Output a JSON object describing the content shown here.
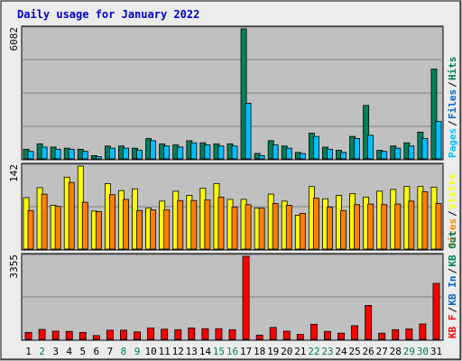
{
  "title": "Daily usage for January 2022",
  "colors": {
    "background": "#ececec",
    "plot_background": "#c0c0c0",
    "title_text": "#0000cc",
    "hits": "#00805c",
    "files": "#0066cc",
    "pages": "#00c0ff",
    "visits": "#ffff00",
    "sites": "#ff8000",
    "kb_in": "#0066cc",
    "kb_out": "#00805c",
    "kb_f": "#ff0000",
    "day_normal": "#000000",
    "day_weekend": "#00805c"
  },
  "chart_data": [
    {
      "type": "bar",
      "panel": "hits-files-pages",
      "ymax_label": "6082",
      "ylim": [
        0,
        6082
      ],
      "legend": [
        {
          "label": "Pages",
          "color": "#00c0ff"
        },
        {
          "label": "Files",
          "color": "#0066cc"
        },
        {
          "label": "Hits",
          "color": "#00805c"
        }
      ],
      "categories": [
        "1",
        "2",
        "3",
        "4",
        "5",
        "6",
        "7",
        "8",
        "9",
        "10",
        "11",
        "12",
        "13",
        "14",
        "15",
        "16",
        "17",
        "18",
        "19",
        "20",
        "21",
        "22",
        "23",
        "24",
        "25",
        "26",
        "27",
        "28",
        "29",
        "30",
        "31"
      ],
      "series": [
        {
          "name": "Hits",
          "values": [
            450,
            700,
            550,
            500,
            450,
            150,
            600,
            600,
            500,
            950,
            700,
            650,
            850,
            750,
            700,
            700,
            6082,
            250,
            850,
            600,
            300,
            1200,
            550,
            400,
            1050,
            2500,
            400,
            600,
            750,
            1250,
            4200
          ]
        },
        {
          "name": "Pages",
          "values": [
            350,
            550,
            450,
            450,
            350,
            100,
            500,
            500,
            400,
            850,
            600,
            550,
            750,
            650,
            600,
            600,
            2600,
            150,
            650,
            500,
            250,
            1050,
            450,
            300,
            950,
            1100,
            350,
            500,
            600,
            950,
            1750
          ]
        }
      ]
    },
    {
      "type": "bar",
      "panel": "visits-sites",
      "ymax_label": "142",
      "ylim": [
        0,
        142
      ],
      "legend": [
        {
          "label": "Sites",
          "color": "#ff8000"
        },
        {
          "label": "Visits",
          "color": "#ffff00"
        }
      ],
      "categories": [
        "1",
        "2",
        "3",
        "4",
        "5",
        "6",
        "7",
        "8",
        "9",
        "10",
        "11",
        "12",
        "13",
        "14",
        "15",
        "16",
        "17",
        "18",
        "19",
        "20",
        "21",
        "22",
        "23",
        "24",
        "25",
        "26",
        "27",
        "28",
        "29",
        "30",
        "31"
      ],
      "series": [
        {
          "name": "Visits",
          "values": [
            88,
            105,
            75,
            123,
            142,
            65,
            112,
            100,
            103,
            70,
            82,
            99,
            92,
            104,
            112,
            85,
            85,
            70,
            94,
            82,
            58,
            107,
            86,
            92,
            95,
            89,
            99,
            102,
            107,
            107,
            106
          ]
        },
        {
          "name": "Sites",
          "values": [
            66,
            94,
            73,
            114,
            80,
            64,
            93,
            85,
            66,
            67,
            67,
            83,
            83,
            84,
            89,
            72,
            76,
            70,
            78,
            75,
            61,
            87,
            72,
            66,
            76,
            77,
            76,
            77,
            82,
            98,
            78
          ]
        }
      ]
    },
    {
      "type": "bar",
      "panel": "kbytes",
      "ymax_label": "3355",
      "ylim": [
        0,
        3355
      ],
      "legend": [
        {
          "label": "KB F",
          "color": "#ff0000"
        },
        {
          "label": "KB In",
          "color": "#0066cc"
        },
        {
          "label": "KB Out",
          "color": "#00805c"
        }
      ],
      "categories": [
        "1",
        "2",
        "3",
        "4",
        "5",
        "6",
        "7",
        "8",
        "9",
        "10",
        "11",
        "12",
        "13",
        "14",
        "15",
        "16",
        "17",
        "18",
        "19",
        "20",
        "21",
        "22",
        "23",
        "24",
        "25",
        "26",
        "27",
        "28",
        "29",
        "30",
        "31"
      ],
      "series": [
        {
          "name": "KB F",
          "values": [
            280,
            400,
            330,
            320,
            280,
            150,
            370,
            370,
            300,
            460,
            410,
            390,
            460,
            430,
            430,
            390,
            3355,
            170,
            480,
            330,
            200,
            610,
            320,
            250,
            550,
            1370,
            250,
            390,
            420,
            620,
            2260
          ]
        }
      ]
    }
  ],
  "days": [
    {
      "label": "1",
      "weekend": false
    },
    {
      "label": "2",
      "weekend": true
    },
    {
      "label": "3",
      "weekend": false
    },
    {
      "label": "4",
      "weekend": false
    },
    {
      "label": "5",
      "weekend": false
    },
    {
      "label": "6",
      "weekend": false
    },
    {
      "label": "7",
      "weekend": false
    },
    {
      "label": "8",
      "weekend": true
    },
    {
      "label": "9",
      "weekend": true
    },
    {
      "label": "10",
      "weekend": false
    },
    {
      "label": "11",
      "weekend": false
    },
    {
      "label": "12",
      "weekend": false
    },
    {
      "label": "13",
      "weekend": false
    },
    {
      "label": "14",
      "weekend": false
    },
    {
      "label": "15",
      "weekend": true
    },
    {
      "label": "16",
      "weekend": true
    },
    {
      "label": "17",
      "weekend": false
    },
    {
      "label": "18",
      "weekend": false
    },
    {
      "label": "19",
      "weekend": false
    },
    {
      "label": "20",
      "weekend": false
    },
    {
      "label": "21",
      "weekend": false
    },
    {
      "label": "22",
      "weekend": true
    },
    {
      "label": "23",
      "weekend": true
    },
    {
      "label": "24",
      "weekend": false
    },
    {
      "label": "25",
      "weekend": false
    },
    {
      "label": "26",
      "weekend": false
    },
    {
      "label": "27",
      "weekend": false
    },
    {
      "label": "28",
      "weekend": false
    },
    {
      "label": "29",
      "weekend": true
    },
    {
      "label": "30",
      "weekend": true
    },
    {
      "label": "31",
      "weekend": false
    }
  ]
}
